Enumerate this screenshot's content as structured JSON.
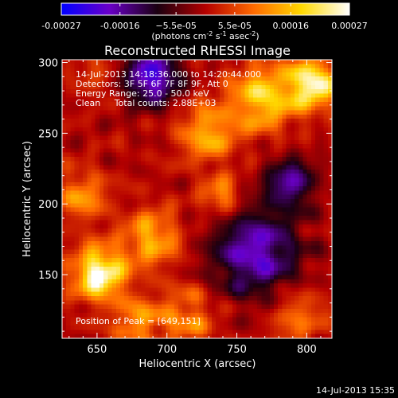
{
  "chart_data": {
    "type": "heatmap",
    "title": "Reconstructed RHESSI Image",
    "xlabel": "Heliocentric X (arcsec)",
    "ylabel": "Heliocentric Y (arcsec)",
    "xlim": [
      625,
      818
    ],
    "ylim": [
      105,
      302
    ],
    "x_ticks": [
      650,
      700,
      750,
      800
    ],
    "x_tick_labels": [
      "650",
      "700",
      "750",
      "800"
    ],
    "y_ticks": [
      150,
      200,
      250,
      300
    ],
    "y_tick_labels": [
      "150",
      "200",
      "250",
      "300"
    ],
    "colorbar": {
      "range": [
        -0.00027,
        0.00027
      ],
      "tick_values": [
        -0.00027,
        -0.00016,
        -5.5e-05,
        5.5e-05,
        0.00016,
        0.00027
      ],
      "tick_labels": [
        "-0.00027",
        "-0.00016",
        "−5.5e-05",
        "5.5e-05",
        "0.00016",
        "0.00027"
      ],
      "unit_base": "(photons cm",
      "unit_exp1": "-2",
      "unit_mid1": " s",
      "unit_exp2": "-1",
      "unit_mid2": " asec",
      "unit_exp3": "-2",
      "unit_end": ")",
      "colormap": [
        "#0000ff",
        "#6a00c8",
        "#1a0010",
        "#b40000",
        "#ff6a00",
        "#ffd800",
        "#ffffff"
      ]
    },
    "annotations": [
      "14-Jul-2013 14:18:36.000 to 14:20:44.000",
      "Detectors: 3F 5F 6F 7F 8F 9F, Att 0",
      "Energy Range: 25.0 - 50.0 keV",
      "Clean     Total counts: 2.88E+03"
    ],
    "peak_label": "Position of Peak = [649,151]",
    "sources": [
      {
        "x": 652,
        "y": 150,
        "peak": 1.0,
        "sigma": 13
      },
      {
        "x": 806,
        "y": 285,
        "peak": 0.95,
        "sigma": 12
      },
      {
        "x": 770,
        "y": 275,
        "peak": 0.7,
        "sigma": 16
      },
      {
        "x": 730,
        "y": 250,
        "peak": 0.55,
        "sigma": 14
      },
      {
        "x": 690,
        "y": 175,
        "peak": 0.55,
        "sigma": 14
      },
      {
        "x": 640,
        "y": 205,
        "peak": 0.45,
        "sigma": 12
      },
      {
        "x": 740,
        "y": 205,
        "peak": 0.45,
        "sigma": 10
      },
      {
        "x": 715,
        "y": 120,
        "peak": 0.4,
        "sigma": 14
      },
      {
        "x": 680,
        "y": 115,
        "peak": 0.45,
        "sigma": 12
      },
      {
        "x": 795,
        "y": 120,
        "peak": 0.35,
        "sigma": 14
      },
      {
        "x": 650,
        "y": 290,
        "peak": 0.2,
        "sigma": 10
      }
    ],
    "negatives": [
      {
        "x": 690,
        "y": 290,
        "depth": 0.8,
        "sigma": 14
      },
      {
        "x": 765,
        "y": 165,
        "depth": 0.7,
        "sigma": 22
      },
      {
        "x": 790,
        "y": 215,
        "depth": 0.6,
        "sigma": 12
      }
    ]
  },
  "footer": {
    "timestamp": "14-Jul-2013 15:35"
  }
}
